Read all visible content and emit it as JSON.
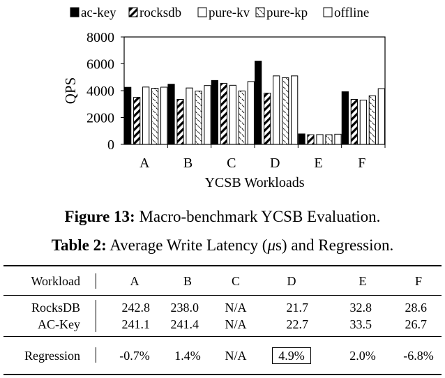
{
  "chart_data": {
    "type": "bar",
    "categories": [
      "A",
      "B",
      "C",
      "D",
      "E",
      "F"
    ],
    "series": [
      {
        "name": "ac-key",
        "pattern": "solid",
        "values": [
          4250,
          4480,
          4760,
          6200,
          780,
          3920
        ]
      },
      {
        "name": "rocksdb",
        "pattern": "hatch",
        "values": [
          3500,
          3350,
          4550,
          3820,
          720,
          3350
        ]
      },
      {
        "name": "pure-kv",
        "pattern": "empty",
        "values": [
          4270,
          4200,
          4400,
          5100,
          730,
          3300
        ]
      },
      {
        "name": "pure-kp",
        "pattern": "dashed",
        "values": [
          4180,
          3970,
          3980,
          4960,
          720,
          3620
        ]
      },
      {
        "name": "offline",
        "pattern": "empty",
        "values": [
          4260,
          4380,
          4680,
          5100,
          760,
          4150
        ]
      }
    ],
    "title": "",
    "xlabel": "YCSB Workloads",
    "ylabel": "QPS",
    "ylim": [
      0,
      8000
    ],
    "yticks": [
      "0",
      "2000",
      "4000",
      "6000",
      "8000"
    ],
    "legend_position": "top",
    "grid": false
  },
  "figure_caption": {
    "label": "Figure 13:",
    "text": "Macro-benchmark YCSB Evaluation."
  },
  "table_caption": {
    "label": "Table 2:",
    "text_before": "Average Write Latency (",
    "mu": "μ",
    "text_after": "s) and Regression."
  },
  "table": {
    "header": [
      "Workload",
      "A",
      "B",
      "C",
      "D",
      "E",
      "F"
    ],
    "rows": [
      [
        "RocksDB",
        "242.8",
        "238.0",
        "N/A",
        "21.7",
        "32.8",
        "28.6"
      ],
      [
        "AC-Key",
        "241.1",
        "241.4",
        "N/A",
        "22.7",
        "33.5",
        "26.7"
      ]
    ],
    "regression": [
      "Regression",
      "-0.7%",
      "1.4%",
      "N/A",
      "4.9%",
      "2.0%",
      "-6.8%"
    ]
  }
}
